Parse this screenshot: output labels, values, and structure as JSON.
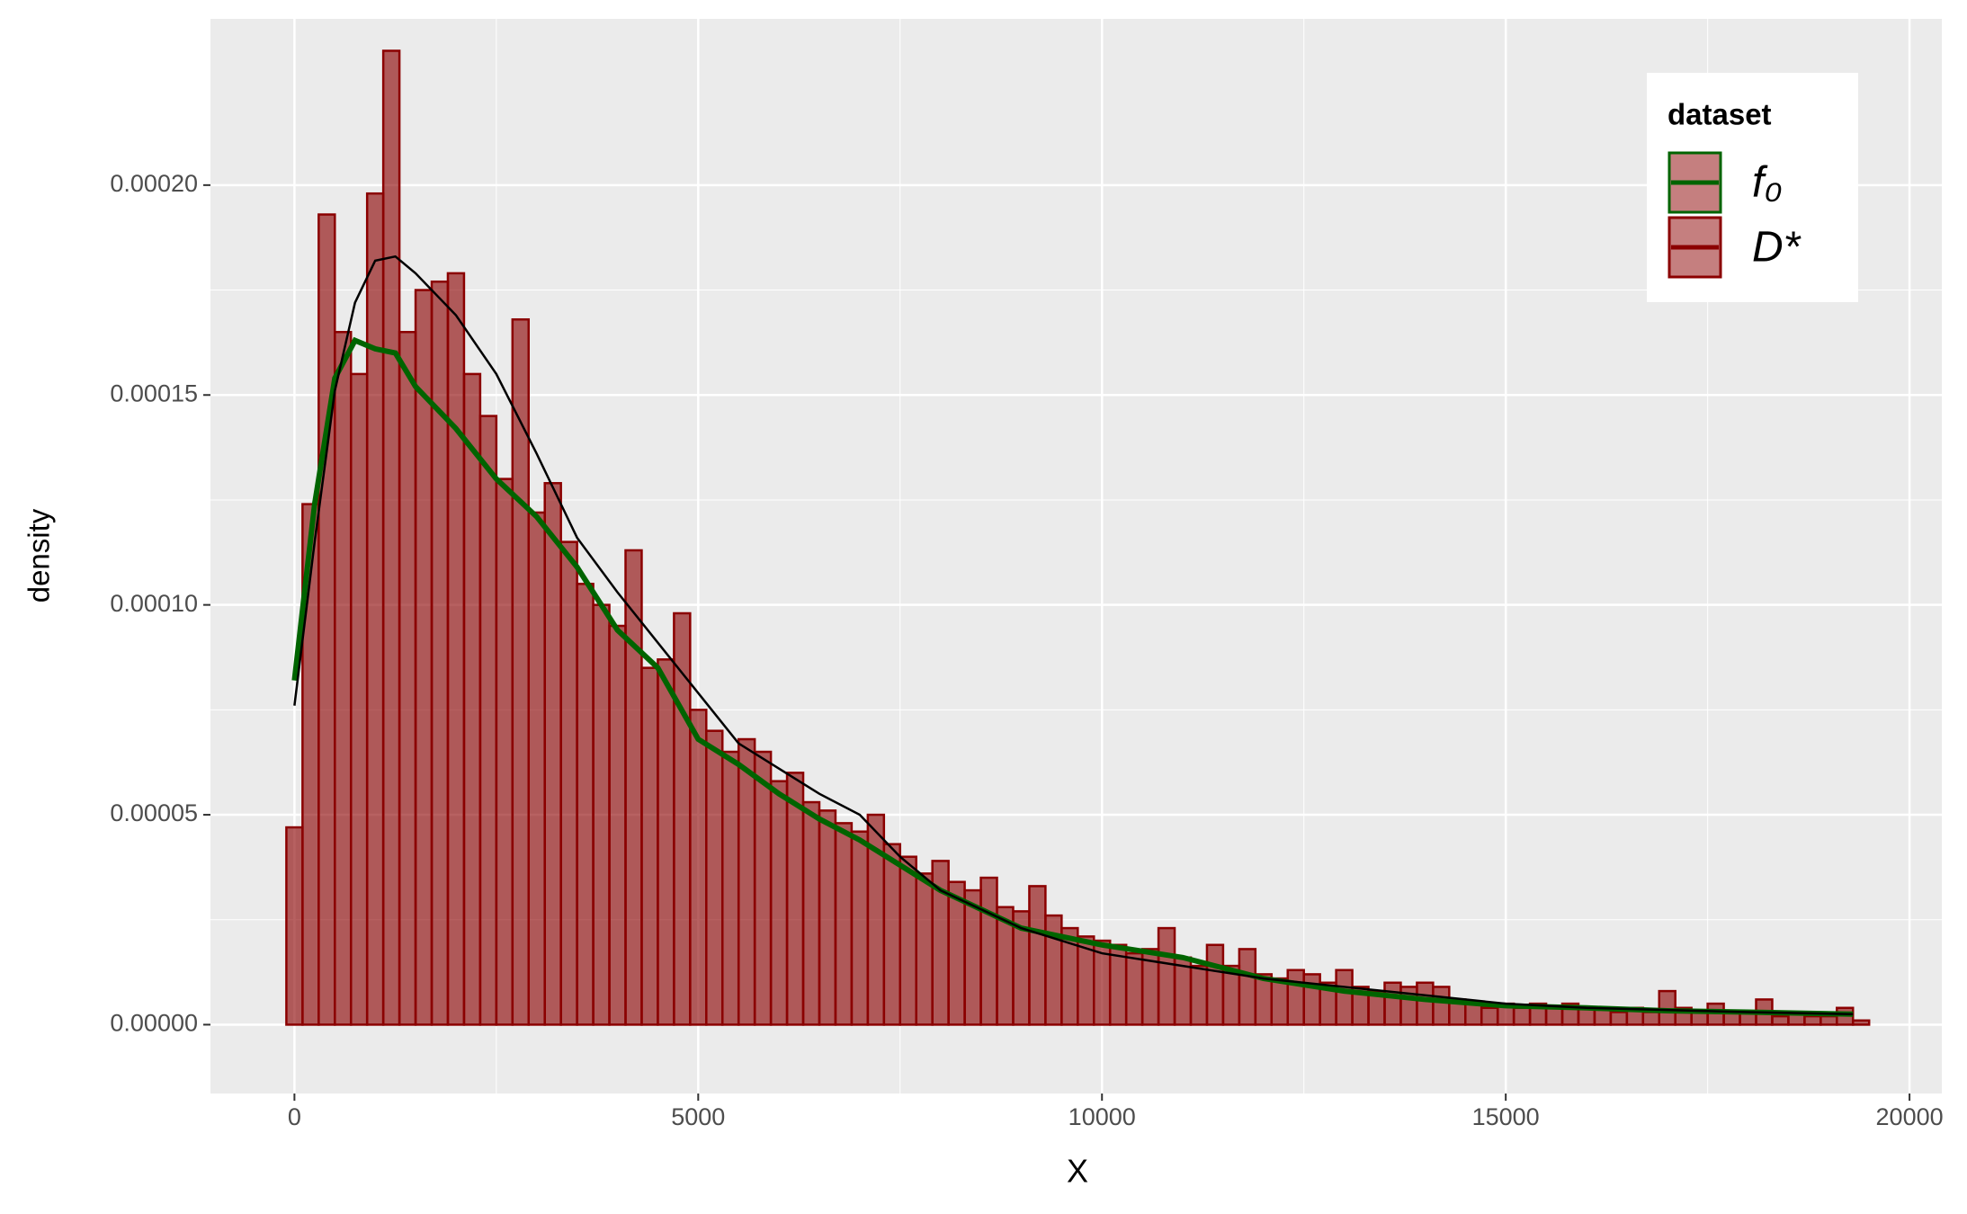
{
  "chart_data": {
    "type": "histogram",
    "x_label": "X",
    "y_label": "density",
    "legend_title": "dataset",
    "bar_color": "#8b0000",
    "bins": [
      -100,
      100,
      300,
      500,
      700,
      900,
      1100,
      1300,
      1500,
      1700,
      1900,
      2100,
      2300,
      2500,
      2700,
      2900,
      3100,
      3300,
      3500,
      3700,
      3900,
      4100,
      4300,
      4500,
      4700,
      4900,
      5100,
      5300,
      5500,
      5700,
      5900,
      6100,
      6300,
      6500,
      6700,
      6900,
      7100,
      7300,
      7500,
      7700,
      7900,
      8100,
      8300,
      8500,
      8700,
      8900,
      9100,
      9300,
      9500,
      9700,
      9900,
      10100,
      10300,
      10500,
      10700,
      10900,
      11100,
      11300,
      11500,
      11700,
      11900,
      12100,
      12300,
      12500,
      12700,
      12900,
      13100,
      13300,
      13500,
      13700,
      13900,
      14100,
      14300,
      14500,
      14700,
      14900,
      15100,
      15300,
      15500,
      15700,
      15900,
      16100,
      16300,
      16500,
      16700,
      16900,
      17100,
      17300,
      17500,
      17700,
      17900,
      18100,
      18300,
      18500,
      18700,
      18900,
      19100,
      19300,
      19500
    ],
    "values": [
      4.7e-05,
      0.000124,
      0.000193,
      0.000165,
      0.000155,
      0.000198,
      0.000232,
      0.000165,
      0.000175,
      0.000177,
      0.000179,
      0.000155,
      0.000145,
      0.00013,
      0.000168,
      0.000122,
      0.000129,
      0.000115,
      0.000105,
      0.0001,
      9.5e-05,
      0.000113,
      8.5e-05,
      8.7e-05,
      9.8e-05,
      7.5e-05,
      7e-05,
      6.5e-05,
      6.8e-05,
      6.5e-05,
      5.8e-05,
      6e-05,
      5.3e-05,
      5.1e-05,
      4.8e-05,
      4.6e-05,
      5e-05,
      4.3e-05,
      4e-05,
      3.6e-05,
      3.9e-05,
      3.4e-05,
      3.2e-05,
      3.5e-05,
      2.8e-05,
      2.7e-05,
      3.3e-05,
      2.6e-05,
      2.3e-05,
      2.1e-05,
      2e-05,
      1.9e-05,
      1.7e-05,
      1.8e-05,
      2.3e-05,
      1.6e-05,
      1.4e-05,
      1.9e-05,
      1.4e-05,
      1.8e-05,
      1.2e-05,
      1.1e-05,
      1.3e-05,
      1.2e-05,
      1e-05,
      1.3e-05,
      9e-06,
      8e-06,
      1e-05,
      9e-06,
      1e-05,
      9e-06,
      6e-06,
      5e-06,
      4e-06,
      5e-06,
      4e-06,
      5e-06,
      4e-06,
      5e-06,
      4e-06,
      4e-06,
      3e-06,
      4e-06,
      3e-06,
      8e-06,
      4e-06,
      3e-06,
      5e-06,
      3e-06,
      3e-06,
      6e-06,
      2e-06,
      3e-06,
      2e-06,
      2e-06,
      4e-06,
      1e-06
    ],
    "series": [
      {
        "name": "f₀",
        "color": "#006400",
        "line_color": "#006400",
        "x": [
          0,
          250,
          500,
          750,
          1000,
          1250,
          1500,
          2000,
          2500,
          3000,
          3500,
          4000,
          4500,
          5000,
          5500,
          6000,
          6500,
          7000,
          7500,
          8000,
          9000,
          10000,
          11000,
          12000,
          13000,
          14000,
          15000,
          16000,
          17000,
          18000,
          19300
        ],
        "values": [
          8.2e-05,
          0.000124,
          0.000154,
          0.000163,
          0.000161,
          0.00016,
          0.000152,
          0.000142,
          0.00013,
          0.000121,
          0.000109,
          9.4e-05,
          8.5e-05,
          6.8e-05,
          6.2e-05,
          5.5e-05,
          4.9e-05,
          4.4e-05,
          3.8e-05,
          3.2e-05,
          2.3e-05,
          1.9e-05,
          1.6e-05,
          1.1e-05,
          8e-06,
          6e-06,
          4.5e-06,
          4e-06,
          3.3e-06,
          3e-06,
          2.5e-06
        ]
      },
      {
        "name": "D*",
        "color": "#8b0000",
        "line_color": "#000000",
        "x": [
          0,
          250,
          500,
          750,
          1000,
          1250,
          1500,
          2000,
          2500,
          3000,
          3500,
          4000,
          4500,
          5000,
          5500,
          6000,
          6500,
          7000,
          7500,
          8000,
          9000,
          10000,
          11000,
          12000,
          13000,
          14000,
          15000,
          16000,
          17000,
          18000,
          19300
        ],
        "values": [
          7.6e-05,
          0.000115,
          0.000151,
          0.000172,
          0.000182,
          0.000183,
          0.000179,
          0.000169,
          0.000155,
          0.000136,
          0.000116,
          0.000103,
          9.1e-05,
          7.9e-05,
          6.7e-05,
          6.1e-05,
          5.5e-05,
          5e-05,
          4e-05,
          3.2e-05,
          2.3e-05,
          1.7e-05,
          1.4e-05,
          1.1e-05,
          9e-06,
          7e-06,
          5e-06,
          4e-06,
          3.5e-06,
          3e-06,
          2.5e-06
        ]
      }
    ],
    "xlim": [
      -1040,
      20400
    ],
    "ylim": [
      -1.64e-05,
      0.0002396
    ],
    "xticks": [
      0,
      5000,
      10000,
      15000,
      20000
    ],
    "yticks": [
      {
        "value": 0,
        "label": "0.00000"
      },
      {
        "value": 5e-05,
        "label": "0.00005"
      },
      {
        "value": 0.0001,
        "label": "0.00010"
      },
      {
        "value": 0.00015,
        "label": "0.00015"
      },
      {
        "value": 0.0002,
        "label": "0.00020"
      }
    ],
    "grid": true
  }
}
